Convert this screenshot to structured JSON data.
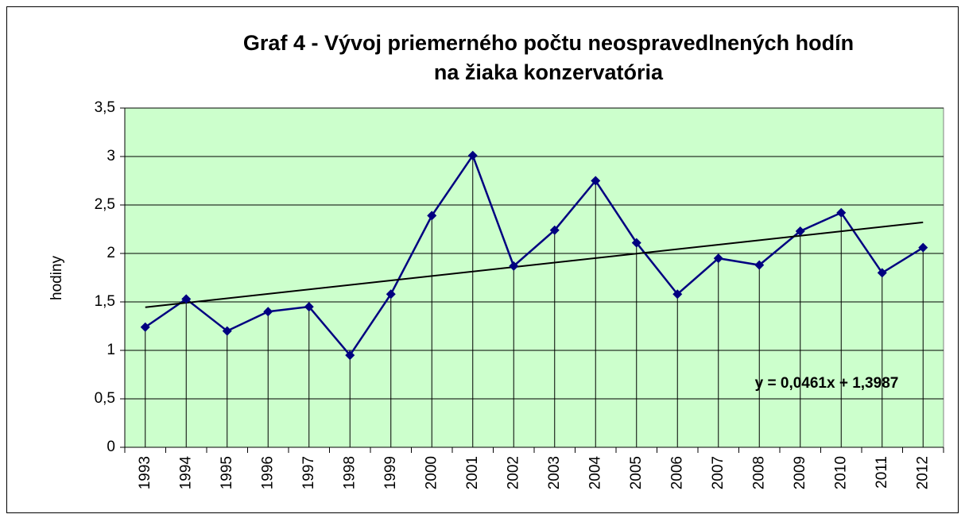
{
  "chart_data": {
    "type": "line",
    "title": [
      "Graf 4 - Vývoj priemerného počtu neospravedlnených hodín",
      "na žiaka konzervatória"
    ],
    "y_label": "hodiny",
    "categories": [
      "1993",
      "1994",
      "1995",
      "1996",
      "1997",
      "1998",
      "1999",
      "2000",
      "2001",
      "2002",
      "2003",
      "2004",
      "2005",
      "2006",
      "2007",
      "2008",
      "2009",
      "2010",
      "2011",
      "2012"
    ],
    "series": [
      {
        "name": "hodiny",
        "color": "#000080",
        "values": [
          1.24,
          1.53,
          1.2,
          1.4,
          1.45,
          0.95,
          1.58,
          2.39,
          3.01,
          1.87,
          2.24,
          2.75,
          2.11,
          1.58,
          1.95,
          1.88,
          2.23,
          2.42,
          1.8,
          2.06
        ]
      }
    ],
    "trendline": {
      "label": "y = 0,0461x + 1,3987",
      "slope": 0.0461,
      "intercept": 1.3987,
      "color": "#000000"
    },
    "ylim": [
      0,
      3.5
    ],
    "yticks": [
      0,
      {
        "value": 0.5,
        "label": "0,5"
      },
      1,
      {
        "value": 1.5,
        "label": "1,5"
      },
      2,
      {
        "value": 2.5,
        "label": "2,5"
      },
      3,
      {
        "value": 3.5,
        "label": "3,5"
      }
    ],
    "grid": true,
    "drop_lines": true,
    "plot_background": "#ccffcc"
  }
}
